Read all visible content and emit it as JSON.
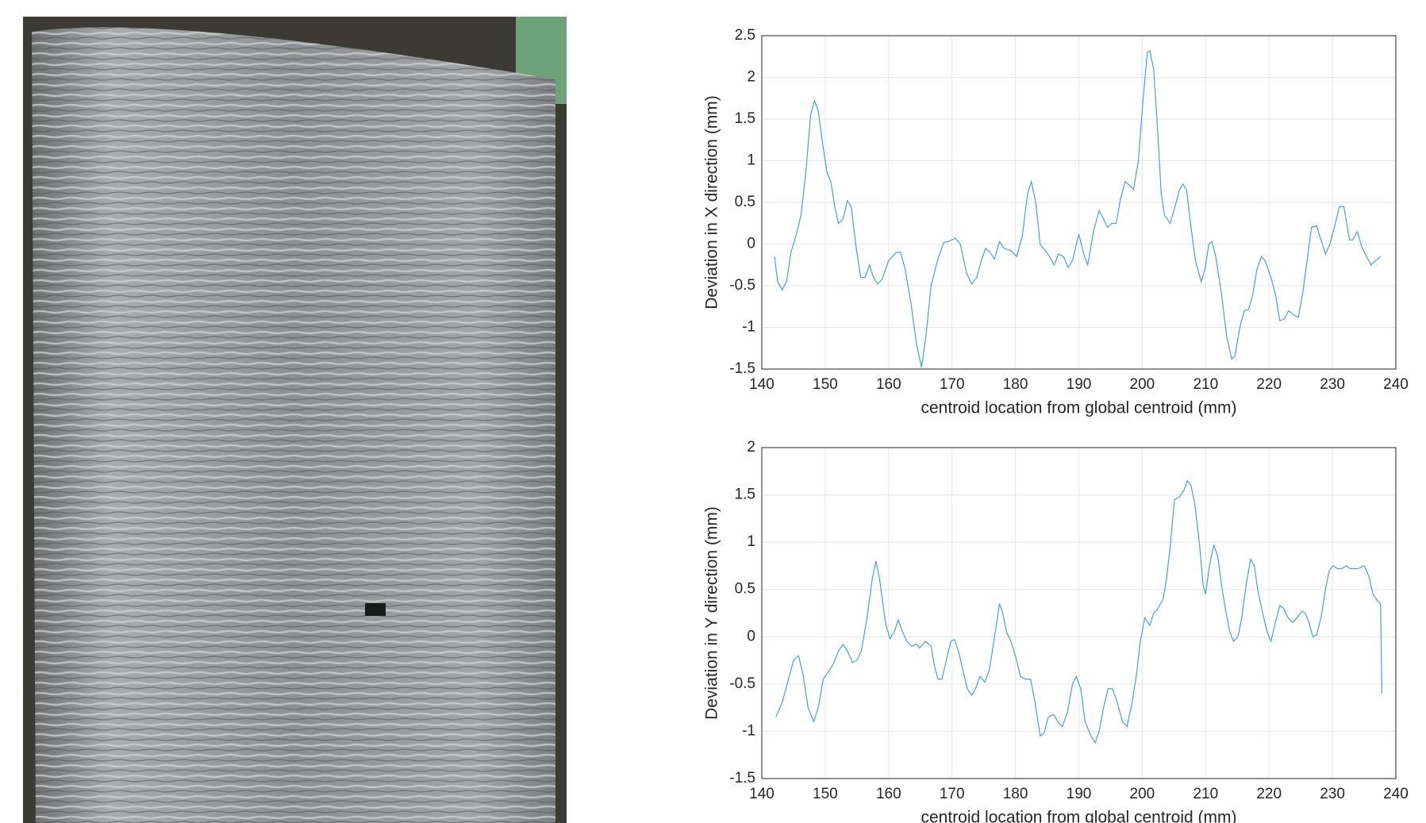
{
  "chart_data": [
    {
      "type": "line",
      "xlabel": "centroid location from global centroid (mm)",
      "ylabel": "Deviation in X direction (mm)",
      "color": "#4a9fdc",
      "grid": true,
      "xlim": [
        140,
        240
      ],
      "xticks": [
        140,
        150,
        160,
        170,
        180,
        190,
        200,
        210,
        220,
        230,
        240
      ],
      "ylim": [
        -1.5,
        2.5
      ],
      "yticks": [
        -1.5,
        -1,
        -0.5,
        0,
        0.5,
        1,
        1.5,
        2,
        2.5
      ],
      "x": [
        142.0,
        142.5,
        143.2,
        143.9,
        144.6,
        145.4,
        146.2,
        147.0,
        147.7,
        148.3,
        148.9,
        149.6,
        150.3,
        150.9,
        151.5,
        152.1,
        152.8,
        153.5,
        154.1,
        154.8,
        155.6,
        156.3,
        157.0,
        157.6,
        158.3,
        159.0,
        160.0,
        161.2,
        161.9,
        162.6,
        163.5,
        164.4,
        165.2,
        165.9,
        166.7,
        167.7,
        168.7,
        169.4,
        170.5,
        171.3,
        172.3,
        173.1,
        173.9,
        174.6,
        175.3,
        176.0,
        176.7,
        177.5,
        178.2,
        179.3,
        180.2,
        181.1,
        181.9,
        182.5,
        183.2,
        183.9,
        184.7,
        185.4,
        186.1,
        186.8,
        187.6,
        188.3,
        189.0,
        190.0,
        190.7,
        191.4,
        192.3,
        193.2,
        193.9,
        194.5,
        195.2,
        195.9,
        196.6,
        197.3,
        198.1,
        198.6,
        199.4,
        200.1,
        200.8,
        201.2,
        201.8,
        202.4,
        203.0,
        203.5,
        204.4,
        205.0,
        205.9,
        206.4,
        207.0,
        207.7,
        208.4,
        209.3,
        209.9,
        210.5,
        211.0,
        211.6,
        212.5,
        213.3,
        214.1,
        214.6,
        215.4,
        216.1,
        216.8,
        217.4,
        218.1,
        218.8,
        219.4,
        220.3,
        221.0,
        221.7,
        222.4,
        223.1,
        223.9,
        224.6,
        225.3,
        226.0,
        226.7,
        227.5,
        228.2,
        228.9,
        229.6,
        230.3,
        231.1,
        231.8,
        232.7,
        233.2,
        233.9,
        234.7,
        235.4,
        236.1,
        236.8,
        237.6
      ],
      "values": [
        -0.15,
        -0.45,
        -0.55,
        -0.45,
        -0.1,
        0.1,
        0.35,
        0.9,
        1.55,
        1.72,
        1.6,
        1.2,
        0.85,
        0.75,
        0.45,
        0.25,
        0.3,
        0.52,
        0.45,
        0.0,
        -0.4,
        -0.4,
        -0.25,
        -0.4,
        -0.48,
        -0.42,
        -0.2,
        -0.1,
        -0.1,
        -0.3,
        -0.7,
        -1.2,
        -1.48,
        -1.1,
        -0.5,
        -0.2,
        0.02,
        0.03,
        0.07,
        0.0,
        -0.35,
        -0.48,
        -0.4,
        -0.2,
        -0.05,
        -0.1,
        -0.18,
        0.03,
        -0.05,
        -0.08,
        -0.15,
        0.1,
        0.6,
        0.75,
        0.5,
        0.0,
        -0.08,
        -0.15,
        -0.25,
        -0.12,
        -0.15,
        -0.28,
        -0.2,
        0.12,
        -0.1,
        -0.25,
        0.15,
        0.4,
        0.3,
        0.2,
        0.25,
        0.25,
        0.55,
        0.75,
        0.7,
        0.65,
        1.0,
        1.7,
        2.3,
        2.32,
        2.1,
        1.4,
        0.6,
        0.35,
        0.25,
        0.4,
        0.65,
        0.72,
        0.65,
        0.2,
        -0.2,
        -0.45,
        -0.3,
        0.0,
        0.03,
        -0.15,
        -0.6,
        -1.1,
        -1.38,
        -1.35,
        -1.0,
        -0.8,
        -0.78,
        -0.62,
        -0.3,
        -0.15,
        -0.2,
        -0.4,
        -0.6,
        -0.92,
        -0.9,
        -0.8,
        -0.85,
        -0.88,
        -0.6,
        -0.2,
        0.2,
        0.22,
        0.05,
        -0.12,
        0.0,
        0.2,
        0.45,
        0.45,
        0.05,
        0.05,
        0.15,
        -0.05,
        -0.15,
        -0.25,
        -0.2,
        -0.15
      ]
    },
    {
      "type": "line",
      "xlabel": "centroid location from global centroid (mm)",
      "ylabel": "Deviation in Y direction (mm)",
      "color": "#4a9fdc",
      "grid": true,
      "xlim": [
        140,
        240
      ],
      "xticks": [
        140,
        150,
        160,
        170,
        180,
        190,
        200,
        210,
        220,
        230,
        240
      ],
      "ylim": [
        -1.5,
        2
      ],
      "yticks": [
        -1.5,
        -1,
        -0.5,
        0,
        0.5,
        1,
        1.5,
        2
      ],
      "x": [
        142.2,
        143.2,
        144.2,
        145.0,
        145.8,
        146.5,
        147.3,
        148.2,
        148.9,
        149.7,
        150.4,
        151.2,
        152.1,
        152.8,
        153.5,
        154.3,
        155.0,
        155.7,
        156.6,
        157.4,
        158.0,
        158.6,
        159.5,
        160.2,
        160.9,
        161.5,
        162.2,
        162.9,
        163.6,
        164.4,
        164.9,
        165.8,
        166.7,
        167.2,
        167.8,
        168.4,
        169.1,
        169.8,
        170.4,
        171.0,
        171.7,
        172.4,
        173.1,
        173.7,
        174.4,
        175.2,
        175.9,
        176.6,
        177.5,
        178.0,
        178.6,
        179.3,
        180.0,
        180.8,
        181.6,
        182.4,
        183.1,
        183.9,
        184.5,
        185.2,
        186.0,
        186.7,
        187.4,
        188.2,
        189.0,
        189.6,
        190.3,
        191.0,
        191.9,
        192.6,
        193.2,
        193.9,
        194.6,
        195.3,
        196.1,
        196.9,
        197.6,
        198.4,
        199.1,
        199.7,
        200.4,
        201.2,
        201.8,
        202.5,
        203.3,
        203.8,
        204.4,
        205.1,
        205.9,
        206.6,
        207.1,
        207.7,
        208.3,
        209.0,
        209.6,
        210.0,
        210.6,
        211.3,
        211.9,
        212.5,
        213.1,
        213.8,
        214.4,
        215.1,
        215.7,
        216.4,
        217.1,
        217.7,
        218.2,
        219.0,
        219.7,
        220.3,
        221.0,
        221.7,
        222.3,
        223.0,
        223.7,
        224.4,
        225.2,
        225.7,
        226.3,
        226.9,
        227.5,
        228.2,
        228.9,
        229.5,
        230.1,
        230.8,
        231.5,
        232.2,
        232.8,
        234.0,
        235.0,
        235.7,
        236.4,
        237.1,
        237.6,
        237.8
      ],
      "values": [
        -0.85,
        -0.7,
        -0.45,
        -0.25,
        -0.2,
        -0.4,
        -0.75,
        -0.9,
        -0.75,
        -0.45,
        -0.38,
        -0.3,
        -0.15,
        -0.08,
        -0.15,
        -0.27,
        -0.25,
        -0.15,
        0.2,
        0.6,
        0.8,
        0.6,
        0.15,
        -0.02,
        0.05,
        0.18,
        0.05,
        -0.05,
        -0.1,
        -0.08,
        -0.12,
        -0.05,
        -0.1,
        -0.3,
        -0.45,
        -0.45,
        -0.25,
        -0.05,
        -0.03,
        -0.15,
        -0.35,
        -0.55,
        -0.62,
        -0.55,
        -0.42,
        -0.48,
        -0.35,
        -0.05,
        0.35,
        0.25,
        0.05,
        -0.05,
        -0.2,
        -0.42,
        -0.45,
        -0.45,
        -0.7,
        -1.05,
        -1.02,
        -0.85,
        -0.82,
        -0.9,
        -0.95,
        -0.8,
        -0.5,
        -0.42,
        -0.55,
        -0.9,
        -1.05,
        -1.12,
        -1.0,
        -0.75,
        -0.55,
        -0.55,
        -0.7,
        -0.9,
        -0.95,
        -0.7,
        -0.4,
        -0.05,
        0.2,
        0.12,
        0.25,
        0.3,
        0.4,
        0.6,
        0.95,
        1.45,
        1.48,
        1.55,
        1.65,
        1.6,
        1.4,
        1.0,
        0.55,
        0.45,
        0.75,
        0.97,
        0.85,
        0.55,
        0.3,
        0.05,
        -0.05,
        0.0,
        0.2,
        0.55,
        0.82,
        0.75,
        0.5,
        0.25,
        0.05,
        -0.05,
        0.15,
        0.33,
        0.3,
        0.2,
        0.15,
        0.2,
        0.27,
        0.25,
        0.15,
        0.0,
        0.02,
        0.2,
        0.5,
        0.7,
        0.75,
        0.72,
        0.72,
        0.75,
        0.72,
        0.72,
        0.75,
        0.65,
        0.45,
        0.38,
        0.35,
        -0.6
      ]
    }
  ]
}
